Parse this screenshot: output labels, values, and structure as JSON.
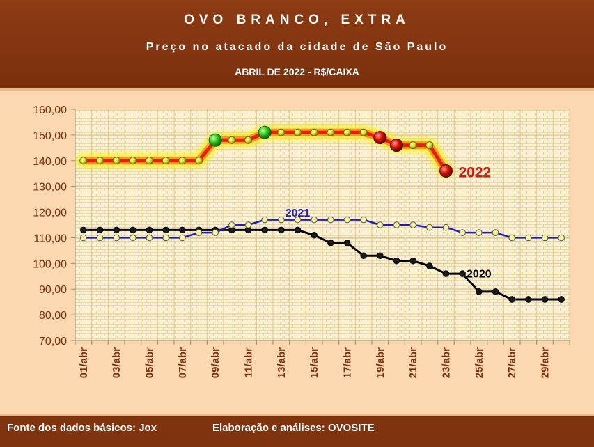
{
  "header": {
    "title": "OVO BRANCO, EXTRA",
    "subtitle": "Preço no atacado da cidade de São Paulo",
    "period": "ABRIL DE 2022 - R$/CAIXA"
  },
  "footer": {
    "source": "Fonte dos dados básicos: Jox",
    "credits": "Elaboração e análises: OVOSITE"
  },
  "colors": {
    "plot_background": "#fbf1d6",
    "grid": "#e0c88a",
    "line_2022": "#e8210b",
    "glow_2022": "#f2ee18",
    "line_2021": "#1f1fb5",
    "line_2020": "#000000",
    "axis_text": "#7a2f0c"
  },
  "chart_data": {
    "type": "line",
    "x": [
      "01/abr",
      "02/abr",
      "03/abr",
      "04/abr",
      "05/abr",
      "06/abr",
      "07/abr",
      "08/abr",
      "09/abr",
      "10/abr",
      "11/abr",
      "12/abr",
      "13/abr",
      "14/abr",
      "15/abr",
      "16/abr",
      "17/abr",
      "18/abr",
      "19/abr",
      "20/abr",
      "21/abr",
      "22/abr",
      "23/abr",
      "24/abr",
      "25/abr",
      "26/abr",
      "27/abr",
      "28/abr",
      "29/abr",
      "30/abr"
    ],
    "x_tick_labels": [
      "01/abr",
      "03/abr",
      "05/abr",
      "07/abr",
      "09/abr",
      "11/abr",
      "13/abr",
      "15/abr",
      "17/abr",
      "19/abr",
      "21/abr",
      "23/abr",
      "25/abr",
      "27/abr",
      "29/abr"
    ],
    "y_tick_labels": [
      "160,00",
      "150,00",
      "140,00",
      "130,00",
      "120,00",
      "110,00",
      "100,00",
      "90,00",
      "80,00",
      "70,00"
    ],
    "ylim": [
      70,
      160
    ],
    "grid": true,
    "series": [
      {
        "name": "2022",
        "values": [
          140,
          140,
          140,
          140,
          140,
          140,
          140,
          140,
          148,
          148,
          148,
          151,
          151,
          151,
          151,
          151,
          151,
          151,
          149,
          146,
          146,
          146,
          136,
          null,
          null,
          null,
          null,
          null,
          null,
          null
        ],
        "highlights": [
          {
            "index": 8,
            "kind": "up"
          },
          {
            "index": 11,
            "kind": "up"
          },
          {
            "index": 18,
            "kind": "down"
          },
          {
            "index": 19,
            "kind": "down"
          },
          {
            "index": 22,
            "kind": "down"
          }
        ]
      },
      {
        "name": "2021",
        "values": [
          110,
          110,
          110,
          110,
          110,
          110,
          110,
          112,
          112,
          115,
          115,
          117,
          117,
          117,
          117,
          117,
          117,
          117,
          115,
          115,
          115,
          114,
          114,
          112,
          112,
          112,
          110,
          110,
          110,
          110
        ]
      },
      {
        "name": "2020",
        "values": [
          113,
          113,
          113,
          113,
          113,
          113,
          113,
          113,
          113,
          113,
          113,
          113,
          113,
          113,
          111,
          108,
          108,
          103,
          103,
          101,
          101,
          99,
          96,
          96,
          89,
          89,
          86,
          86,
          86,
          86
        ]
      }
    ]
  }
}
